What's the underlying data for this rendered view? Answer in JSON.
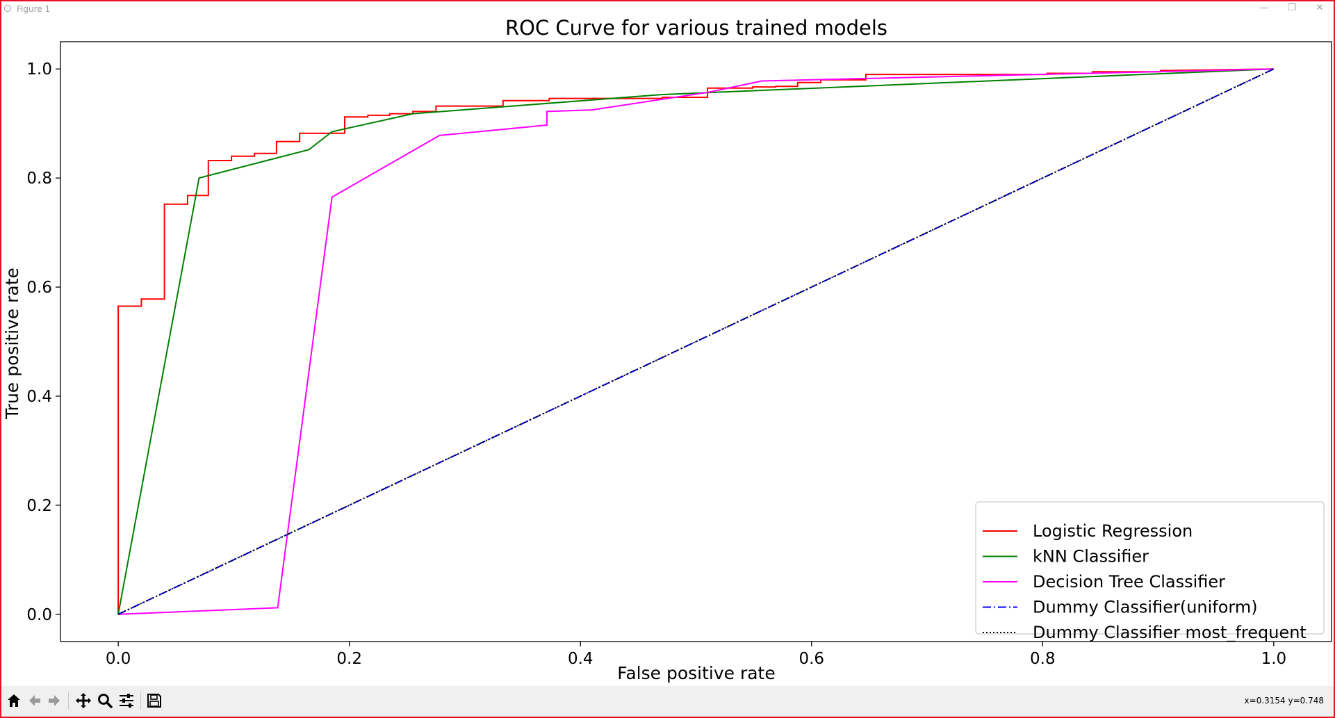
{
  "window": {
    "title": "Figure 1",
    "minimize_icon": "minimize-icon",
    "maximize_icon": "restore-icon",
    "close_icon": "close-icon"
  },
  "toolbar": {
    "buttons": [
      {
        "name": "home",
        "icon": "home-icon"
      },
      {
        "name": "back",
        "icon": "back-arrow-icon"
      },
      {
        "name": "forward",
        "icon": "forward-arrow-icon"
      },
      {
        "name": "pan",
        "icon": "pan-icon"
      },
      {
        "name": "zoom",
        "icon": "zoom-icon"
      },
      {
        "name": "configure-subplots",
        "icon": "sliders-icon"
      },
      {
        "name": "save",
        "icon": "save-icon"
      }
    ],
    "coordinates": "x=0.3154 y=0.748"
  },
  "chart_data": {
    "type": "line",
    "title": "ROC Curve for various trained models",
    "xlabel": "False positive rate",
    "ylabel": "True positive rate",
    "xlim": [
      -0.05,
      1.05
    ],
    "ylim": [
      -0.05,
      1.05
    ],
    "x_ticks": [
      0.0,
      0.2,
      0.4,
      0.6,
      0.8,
      1.0
    ],
    "y_ticks": [
      0.0,
      0.2,
      0.4,
      0.6,
      0.8,
      1.0
    ],
    "x_tick_labels": [
      "0.0",
      "0.2",
      "0.4",
      "0.6",
      "0.8",
      "1.0"
    ],
    "y_tick_labels": [
      "0.0",
      "0.2",
      "0.4",
      "0.6",
      "0.8",
      "1.0"
    ],
    "grid": false,
    "legend_position": "lower-right",
    "series": [
      {
        "name": "Logistic Regression",
        "color": "#ff0000",
        "style": "solid",
        "x": [
          0,
          0,
          0.02,
          0.02,
          0.04,
          0.04,
          0.06,
          0.06,
          0.078,
          0.078,
          0.098,
          0.098,
          0.118,
          0.118,
          0.137,
          0.137,
          0.157,
          0.157,
          0.196,
          0.196,
          0.216,
          0.216,
          0.235,
          0.235,
          0.255,
          0.255,
          0.275,
          0.275,
          0.333,
          0.333,
          0.373,
          0.373,
          0.471,
          0.471,
          0.51,
          0.51,
          0.549,
          0.549,
          0.569,
          0.569,
          0.588,
          0.588,
          0.608,
          0.608,
          0.647,
          0.647,
          0.804,
          0.804,
          0.843,
          0.843,
          0.902,
          0.902,
          1.0
        ],
        "y": [
          0,
          0.565,
          0.565,
          0.578,
          0.578,
          0.752,
          0.752,
          0.768,
          0.768,
          0.832,
          0.832,
          0.84,
          0.84,
          0.845,
          0.845,
          0.867,
          0.867,
          0.882,
          0.882,
          0.912,
          0.912,
          0.915,
          0.915,
          0.918,
          0.918,
          0.922,
          0.922,
          0.932,
          0.932,
          0.942,
          0.942,
          0.946,
          0.946,
          0.948,
          0.948,
          0.965,
          0.965,
          0.967,
          0.967,
          0.968,
          0.968,
          0.975,
          0.975,
          0.98,
          0.98,
          0.99,
          0.99,
          0.992,
          0.992,
          0.995,
          0.995,
          0.997,
          1.0
        ]
      },
      {
        "name": "kNN Classifier",
        "color": "#008000",
        "style": "solid",
        "x": [
          0,
          0.07,
          0.165,
          0.185,
          0.255,
          0.47,
          1.0
        ],
        "y": [
          0,
          0.8,
          0.852,
          0.885,
          0.918,
          0.953,
          1.0
        ]
      },
      {
        "name": "Decision Tree Classifier",
        "color": "#ff00ff",
        "style": "solid",
        "x": [
          0,
          0.138,
          0.185,
          0.278,
          0.371,
          0.371,
          0.41,
          0.51,
          0.557,
          1.0
        ],
        "y": [
          0,
          0.012,
          0.765,
          0.878,
          0.897,
          0.922,
          0.925,
          0.957,
          0.978,
          1.0
        ]
      },
      {
        "name": "Dummy Classifier(uniform)",
        "color": "#0000ff",
        "style": "dashdot",
        "x": [
          0,
          1.0
        ],
        "y": [
          0,
          1.0
        ]
      },
      {
        "name": "Dummy Classifier most_frequent",
        "color": "#000000",
        "style": "dotted",
        "x": [
          0,
          1.0
        ],
        "y": [
          0,
          1.0
        ]
      }
    ]
  }
}
